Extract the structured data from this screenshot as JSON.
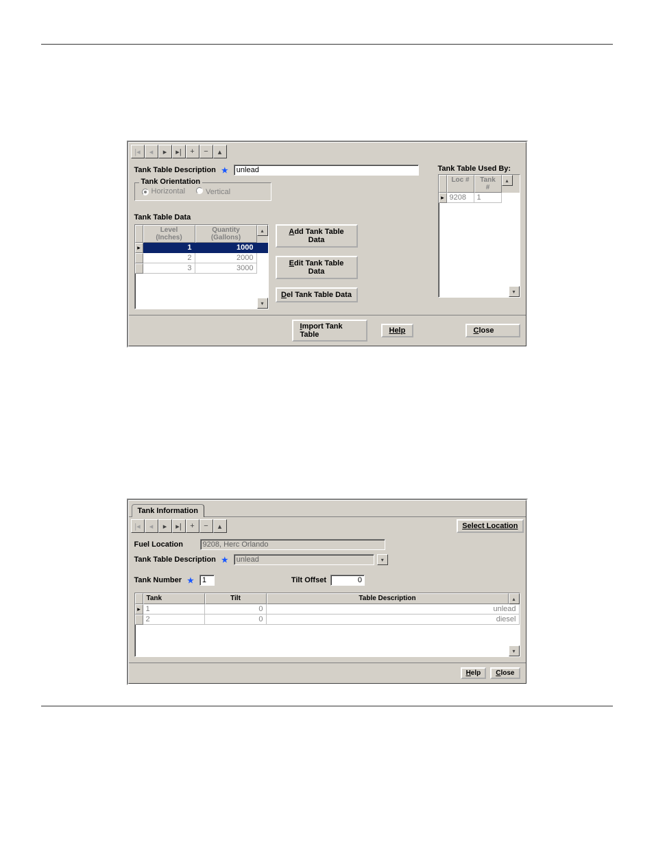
{
  "dialog1": {
    "desc_label": "Tank Table Description",
    "desc_value": "unlead",
    "orientation": {
      "legend": "Tank Orientation",
      "options": {
        "horizontal": "Horizontal",
        "vertical": "Vertical"
      },
      "selected": "horizontal"
    },
    "data_title": "Tank Table Data",
    "columns": {
      "level": "Level (Inches)",
      "qty": "Quantity (Gallons)"
    },
    "rows": [
      {
        "level": "1",
        "qty": "1000",
        "selected": true
      },
      {
        "level": "2",
        "qty": "2000",
        "selected": false
      },
      {
        "level": "3",
        "qty": "3000",
        "selected": false
      }
    ],
    "actions": {
      "add": "Add Tank Table Data",
      "edit": "Edit Tank Table Data",
      "del": "Del Tank Table Data"
    },
    "usedby_title": "Tank Table Used By:",
    "usedby_columns": {
      "loc": "Loc #",
      "tank": "Tank #"
    },
    "usedby_rows": [
      {
        "loc": "9208",
        "tank": "1"
      }
    ],
    "footer": {
      "import": "Import Tank Table",
      "help": "Help",
      "close": "Close"
    }
  },
  "dialog2": {
    "tab": "Tank Information",
    "select_location": "Select Location",
    "fuel_location_label": "Fuel Location",
    "fuel_location_value": "9208, Herc Orlando",
    "desc_label": "Tank Table Description",
    "desc_value": "unlead",
    "tank_number_label": "Tank Number",
    "tank_number_value": "1",
    "tilt_offset_label": "Tilt Offset",
    "tilt_offset_value": "0",
    "columns": {
      "tank": "Tank",
      "tilt": "Tilt",
      "desc": "Table Description"
    },
    "rows": [
      {
        "tank": "1",
        "tilt": "0",
        "desc": "unlead",
        "current": true
      },
      {
        "tank": "2",
        "tilt": "0",
        "desc": "diesel",
        "current": false
      }
    ],
    "footer": {
      "help": "Help",
      "close": "Close"
    }
  }
}
